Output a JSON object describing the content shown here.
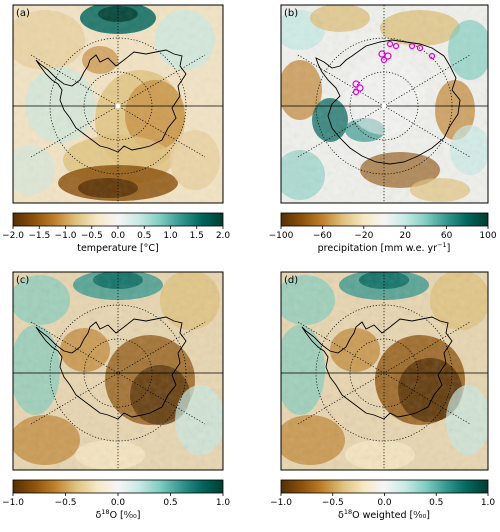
{
  "colormap": {
    "name": "BrBG",
    "stops": [
      "#543005",
      "#8c510a",
      "#bf812d",
      "#dfc27d",
      "#f6e8c3",
      "#f5f5f5",
      "#c7eae5",
      "#80cdc1",
      "#35978f",
      "#01665e",
      "#003c30"
    ]
  },
  "chart_data": [
    {
      "type": "heatmap",
      "panel": "(a)",
      "projection": "south-polar-stereographic",
      "map_content": "Antarctica coastline with dotted latitude circles and longitude lines",
      "colorbar": {
        "label": "temperature [°C]",
        "range": [
          -2.0,
          2.0
        ],
        "ticks": [
          "−2.0",
          "−1.5",
          "−1.0",
          "−0.5",
          "0.0",
          "0.5",
          "1.0",
          "1.5",
          "2.0"
        ]
      }
    },
    {
      "type": "heatmap",
      "panel": "(b)",
      "projection": "south-polar-stereographic",
      "map_content": "Antarctica coastline with dotted latitude circles and longitude lines",
      "markers": {
        "color": "#e000e0",
        "shape": "open-circle"
      },
      "colorbar": {
        "label": "precipitation [mm w.e. yr",
        "label_superscript": "−1",
        "label_suffix": "]",
        "range": [
          -100,
          100
        ],
        "ticks": [
          "−100",
          "−60",
          "−20",
          "20",
          "60",
          "100"
        ]
      }
    },
    {
      "type": "heatmap",
      "panel": "(c)",
      "projection": "south-polar-stereographic",
      "map_content": "Antarctica coastline with dotted latitude circles and longitude lines",
      "colorbar": {
        "label_prefix": "δ",
        "label_superscript": "18",
        "label": "O [",
        "label_unit": "⁰⁄₀₀",
        "label_suffix": "]",
        "range": [
          -1.0,
          1.0
        ],
        "ticks": [
          "−1.0",
          "−0.5",
          "0.0",
          "0.5",
          "1.0"
        ]
      }
    },
    {
      "type": "heatmap",
      "panel": "(d)",
      "projection": "south-polar-stereographic",
      "map_content": "Antarctica coastline with dotted latitude circles and longitude lines",
      "colorbar": {
        "label_prefix": "δ",
        "label_superscript": "18",
        "label": "O weighted [",
        "label_unit": "⁰⁄₀₀",
        "label_suffix": "]",
        "range": [
          -1.0,
          1.0
        ],
        "ticks": [
          "−1.0",
          "−0.5",
          "0.0",
          "0.5",
          "1.0"
        ]
      }
    }
  ]
}
